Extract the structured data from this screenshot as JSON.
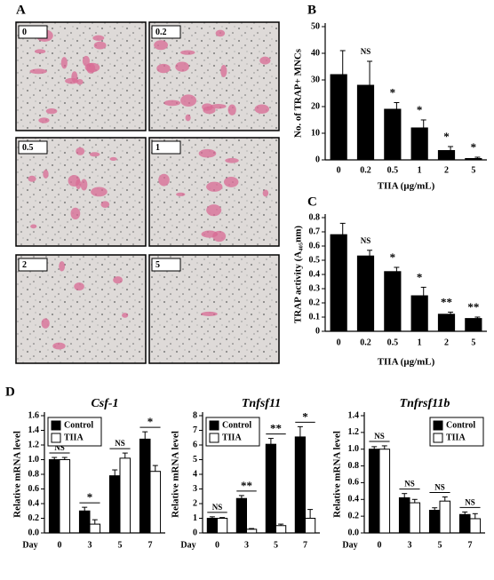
{
  "panel_labels": [
    "A",
    "B",
    "C",
    "D"
  ],
  "micrographs": [
    "0",
    "0.2",
    "0.5",
    "1",
    "2",
    "5"
  ],
  "chart_data": [
    {
      "type": "bar",
      "y_label": "No. of TRAP+ MNCs",
      "x_label": "TIIA (μg/mL)",
      "categories": [
        "0",
        "0.2",
        "0.5",
        "1",
        "2",
        "5"
      ],
      "values": [
        32,
        28,
        19,
        12,
        3.5,
        0.5
      ],
      "errors": [
        9,
        9,
        2.5,
        3,
        1.5,
        0.5
      ],
      "annotations": [
        null,
        "NS",
        "*",
        "*",
        "*",
        "*"
      ],
      "color": "#000000",
      "ylim": [
        0,
        50
      ],
      "yticks": [
        0,
        10,
        20,
        30,
        40,
        50
      ]
    },
    {
      "type": "bar",
      "y_label": "TRAP activity (A₄₀₅nm)",
      "x_label": "TIIA (μg/mL)",
      "categories": [
        "0",
        "0.2",
        "0.5",
        "1",
        "2",
        "5"
      ],
      "values": [
        0.68,
        0.53,
        0.42,
        0.25,
        0.12,
        0.09
      ],
      "errors": [
        0.08,
        0.04,
        0.03,
        0.06,
        0.015,
        0.01
      ],
      "annotations": [
        null,
        "NS",
        "*",
        "*",
        "**",
        "**"
      ],
      "color": "#000000",
      "ylim": [
        0,
        0.8
      ],
      "yticks": [
        0,
        0.1,
        0.2,
        0.3,
        0.4,
        0.5,
        0.6,
        0.7,
        0.8
      ]
    },
    {
      "type": "grouped_bar",
      "title": "Csf-1",
      "y_label": "Relative mRNA level",
      "x_label": "Day",
      "categories": [
        "0",
        "3",
        "5",
        "7"
      ],
      "series": [
        {
          "name": "Control",
          "color": "#000000",
          "values": [
            1.0,
            0.3,
            0.78,
            1.28
          ],
          "errors": [
            0.03,
            0.05,
            0.08,
            0.1
          ]
        },
        {
          "name": "TIIA",
          "color": "#ffffff",
          "values": [
            1.0,
            0.12,
            1.02,
            0.84
          ],
          "errors": [
            0.03,
            0.06,
            0.07,
            0.08
          ]
        }
      ],
      "annotations": [
        "NS",
        "*",
        "NS",
        "*"
      ],
      "legend": "upper left",
      "ylim": [
        0,
        1.6
      ],
      "yticks": [
        {
          "value": 0,
          "label": "0.0"
        },
        {
          "value": 0.2,
          "label": "0.2"
        },
        {
          "value": 0.4,
          "label": "0.4"
        },
        {
          "value": 0.6,
          "label": "0.6"
        },
        {
          "value": 0.8,
          "label": "0.8"
        },
        {
          "value": 1,
          "label": "1.0"
        },
        {
          "value": 1.2,
          "label": "1.2"
        },
        {
          "value": 1.4,
          "label": "1.4"
        },
        {
          "value": 1.6,
          "label": "1.6"
        }
      ]
    },
    {
      "type": "grouped_bar",
      "title": "Tnfsf11",
      "y_label": "Relative mRNA level",
      "x_label": "Day",
      "categories": [
        "0",
        "3",
        "5",
        "7"
      ],
      "series": [
        {
          "name": "Control",
          "color": "#000000",
          "values": [
            1.0,
            2.35,
            6.05,
            6.55
          ],
          "errors": [
            0.1,
            0.2,
            0.4,
            0.7
          ]
        },
        {
          "name": "TIIA",
          "color": "#ffffff",
          "values": [
            1.0,
            0.25,
            0.5,
            1.0
          ],
          "errors": [
            0.05,
            0.05,
            0.1,
            0.6
          ]
        }
      ],
      "annotations": [
        "NS",
        "**",
        "**",
        "*"
      ],
      "legend": "upper left",
      "ylim": [
        0,
        8
      ],
      "yticks": [
        0,
        1,
        2,
        3,
        4,
        5,
        6,
        7,
        8
      ]
    },
    {
      "type": "grouped_bar",
      "title": "Tnfrsf11b",
      "y_label": "Relative mRNA level",
      "x_label": "Day",
      "categories": [
        "0",
        "3",
        "5",
        "7"
      ],
      "series": [
        {
          "name": "Control",
          "color": "#000000",
          "values": [
            1.0,
            0.42,
            0.27,
            0.22
          ],
          "errors": [
            0.03,
            0.05,
            0.03,
            0.03
          ]
        },
        {
          "name": "TIIA",
          "color": "#ffffff",
          "values": [
            1.0,
            0.36,
            0.38,
            0.17
          ],
          "errors": [
            0.04,
            0.04,
            0.05,
            0.06
          ]
        }
      ],
      "annotations": [
        "NS",
        "NS",
        "NS",
        "NS"
      ],
      "legend": "upper right",
      "ylim": [
        0,
        1.4
      ],
      "yticks": [
        {
          "value": 0,
          "label": "0.0"
        },
        {
          "value": 0.2,
          "label": "0.2"
        },
        {
          "value": 0.4,
          "label": "0.4"
        },
        {
          "value": 0.6,
          "label": "0.6"
        },
        {
          "value": 0.8,
          "label": "0.8"
        },
        {
          "value": 1,
          "label": "1.0"
        },
        {
          "value": 1.2,
          "label": "1.2"
        },
        {
          "value": 1.4,
          "label": "1.4"
        }
      ]
    }
  ]
}
